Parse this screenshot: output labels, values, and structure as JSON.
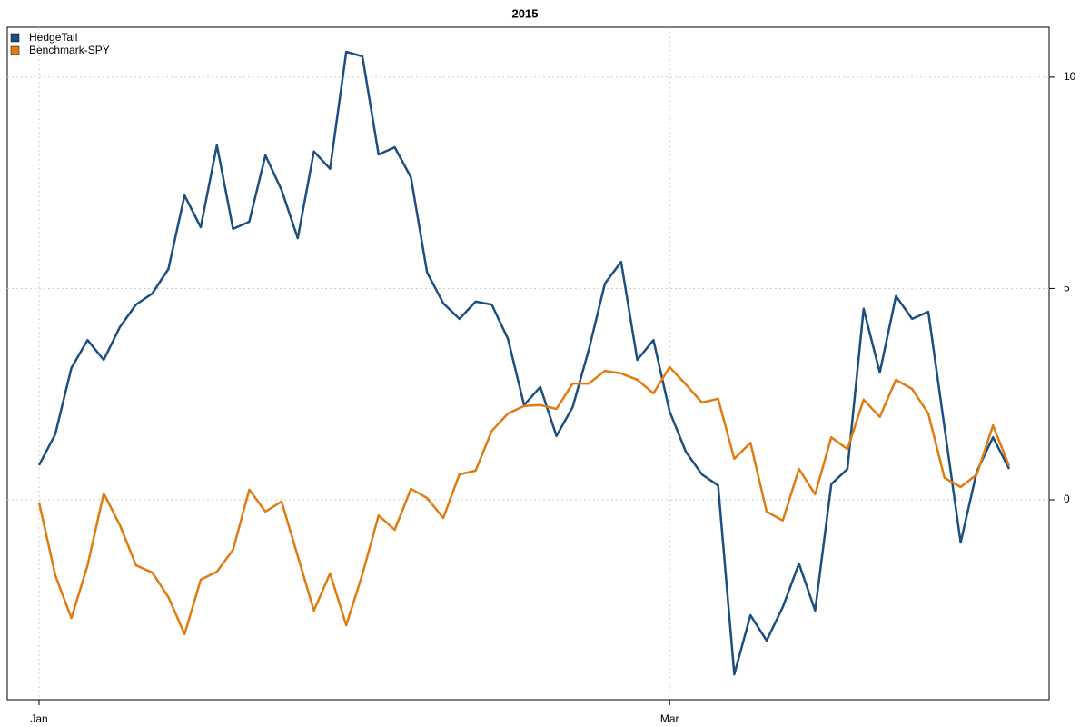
{
  "chart_data": {
    "type": "line",
    "title": "2015",
    "categories": [
      "Jan",
      null,
      null,
      null,
      null,
      null,
      null,
      null,
      null,
      null,
      null,
      null,
      null,
      null,
      null,
      null,
      null,
      null,
      null,
      null,
      null,
      null,
      null,
      null,
      null,
      null,
      null,
      null,
      null,
      null,
      null,
      null,
      null,
      null,
      null,
      null,
      null,
      null,
      null,
      "Mar",
      null,
      null,
      null,
      null,
      null,
      null,
      null,
      null,
      null,
      null,
      null,
      null,
      null,
      null,
      null,
      null,
      null,
      null,
      null,
      null,
      null
    ],
    "series": [
      {
        "name": "HedgeTail",
        "color": "#1b4f80",
        "values": [
          0.82,
          1.55,
          3.12,
          3.78,
          3.31,
          4.09,
          4.62,
          4.88,
          5.46,
          7.2,
          6.45,
          8.39,
          6.41,
          6.58,
          8.15,
          7.33,
          6.19,
          8.24,
          7.83,
          10.6,
          10.49,
          8.17,
          8.34,
          7.63,
          5.38,
          4.65,
          4.28,
          4.69,
          4.62,
          3.81,
          2.24,
          2.67,
          1.51,
          2.19,
          3.55,
          5.12,
          5.63,
          3.31,
          3.78,
          2.09,
          1.14,
          0.6,
          0.34,
          -4.13,
          -2.73,
          -3.33,
          -2.54,
          -1.51,
          -2.62,
          0.37,
          0.73,
          4.52,
          3.01,
          4.82,
          4.28,
          4.45,
          1.72,
          -1.01,
          0.67,
          1.48,
          0.73
        ]
      },
      {
        "name": "Benchmark-SPY",
        "color": "#e07b10",
        "values": [
          -0.06,
          -1.78,
          -2.8,
          -1.55,
          0.15,
          -0.6,
          -1.55,
          -1.72,
          -2.3,
          -3.18,
          -1.89,
          -1.7,
          -1.18,
          0.24,
          -0.28,
          -0.04,
          -1.33,
          -2.62,
          -1.74,
          -2.97,
          -1.76,
          -0.37,
          -0.71,
          0.26,
          0.04,
          -0.43,
          0.6,
          0.69,
          1.63,
          2.04,
          2.22,
          2.24,
          2.15,
          2.75,
          2.75,
          3.05,
          2.99,
          2.84,
          2.52,
          3.14,
          2.73,
          2.3,
          2.39,
          0.97,
          1.35,
          -0.28,
          -0.49,
          0.73,
          0.13,
          1.48,
          1.2,
          2.37,
          1.96,
          2.84,
          2.62,
          2.04,
          0.52,
          0.3,
          0.6,
          1.76,
          0.8
        ]
      }
    ],
    "ylim": [
      -4.73,
      11.18
    ],
    "yticks": [
      0,
      5,
      10
    ],
    "grid": true,
    "legend": "top-left"
  }
}
